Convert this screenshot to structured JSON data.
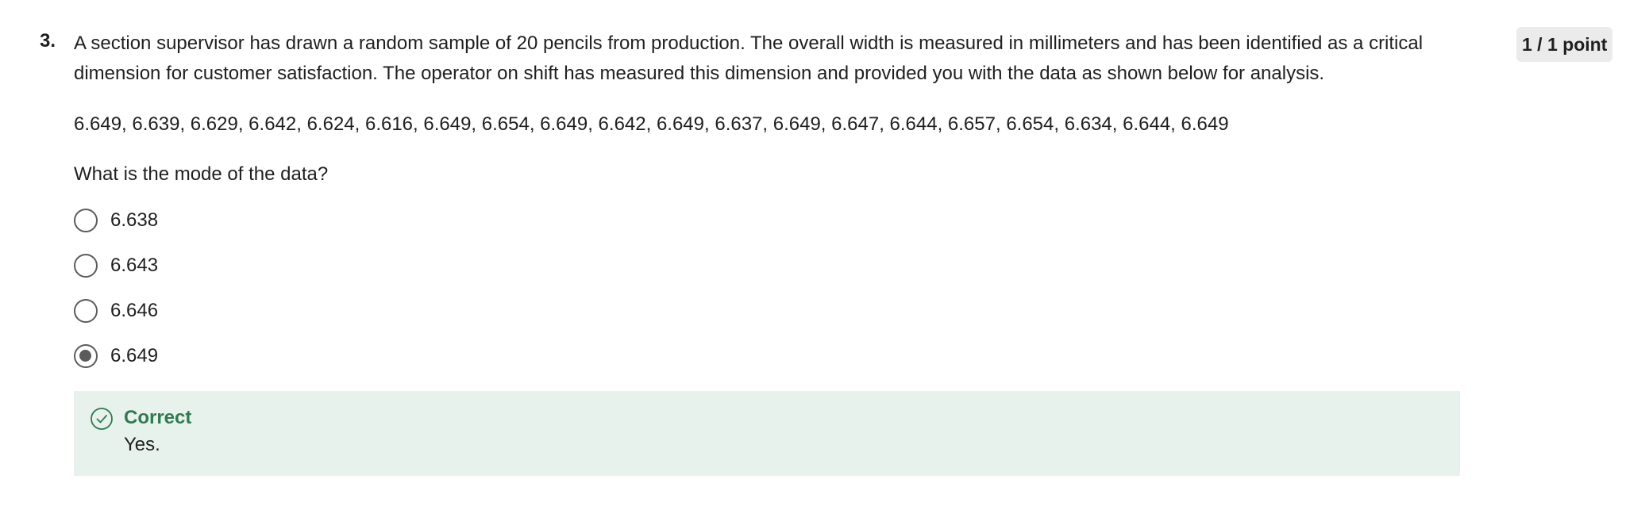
{
  "question": {
    "number": "3.",
    "text": "A section supervisor has drawn a random sample of 20 pencils from production. The overall width is measured in millimeters and has been identified as a critical dimension for customer satisfaction. The operator on shift has measured this dimension and provided you with the data as shown below for analysis.",
    "data": "6.649, 6.639, 6.629, 6.642, 6.624, 6.616, 6.649, 6.654, 6.649, 6.642, 6.649, 6.637, 6.649, 6.647, 6.644, 6.657, 6.654, 6.634, 6.644, 6.649",
    "prompt": "What is the mode of the data?",
    "points": "1 / 1 point",
    "options": [
      {
        "label": "6.638",
        "selected": false
      },
      {
        "label": "6.643",
        "selected": false
      },
      {
        "label": "6.646",
        "selected": false
      },
      {
        "label": "6.649",
        "selected": true
      }
    ],
    "feedback": {
      "title": "Correct",
      "text": "Yes.",
      "icon": "check-circle-icon",
      "color": "#2f7a4f",
      "background": "#e8f2ec"
    }
  }
}
